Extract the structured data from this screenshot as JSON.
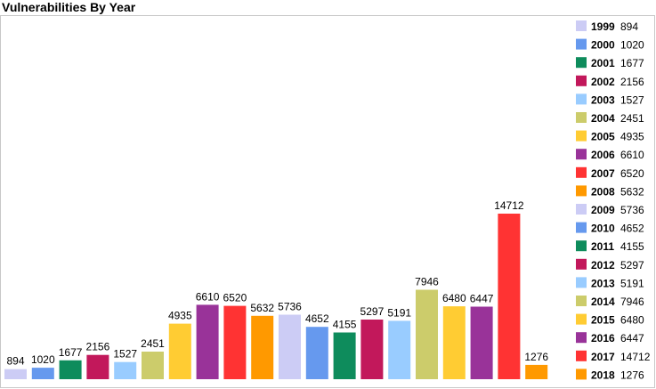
{
  "chart_data": {
    "type": "bar",
    "title": "Vulnerabilities By Year",
    "xlabel": "",
    "ylabel": "",
    "ylim": [
      0,
      14712
    ],
    "legend_position": "right",
    "categories": [
      "1999",
      "2000",
      "2001",
      "2002",
      "2003",
      "2004",
      "2005",
      "2006",
      "2007",
      "2008",
      "2009",
      "2010",
      "2011",
      "2012",
      "2013",
      "2014",
      "2015",
      "2016",
      "2017",
      "2018"
    ],
    "values": [
      894,
      1020,
      1677,
      2156,
      1527,
      2451,
      4935,
      6610,
      6520,
      5632,
      5736,
      4652,
      4155,
      5297,
      5191,
      7946,
      6480,
      6447,
      14712,
      1276
    ],
    "colors": [
      "#ccccf5",
      "#6699ee",
      "#0e8c5c",
      "#c2185b",
      "#99ccff",
      "#cccc6b",
      "#ffcc33",
      "#993399",
      "#ff3333",
      "#ff9900",
      "#ccccf5",
      "#6699ee",
      "#0e8c5c",
      "#c2185b",
      "#99ccff",
      "#cccc6b",
      "#ffcc33",
      "#993399",
      "#ff3333",
      "#ff9900"
    ]
  }
}
